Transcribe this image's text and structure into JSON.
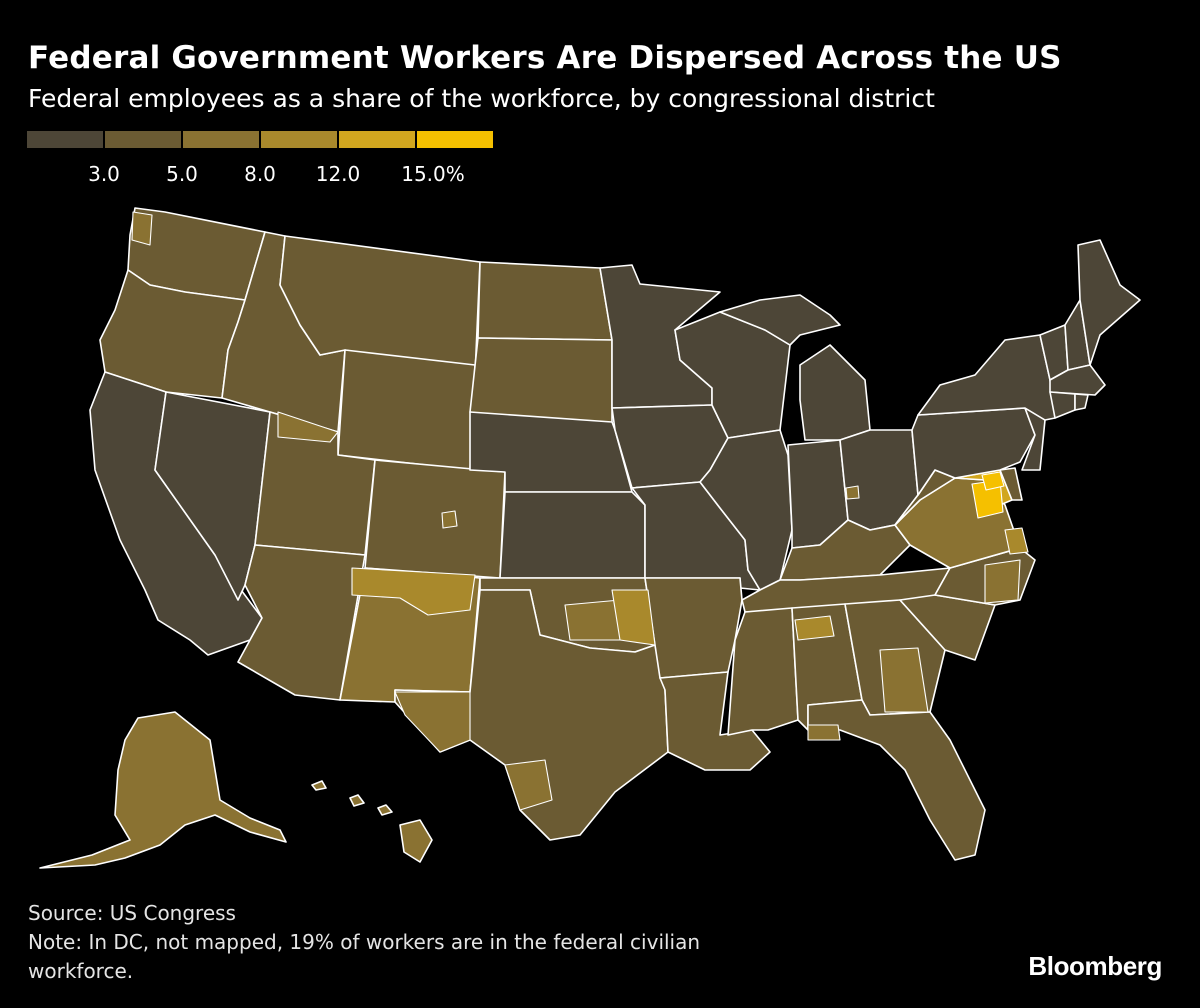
{
  "title": "Federal Government Workers Are Dispersed Across the US",
  "subtitle": "Federal employees as a share of the workforce, by congressional district",
  "legend": {
    "bins": [
      {
        "color": "#4d4637"
      },
      {
        "color": "#6b5b33"
      },
      {
        "color": "#8a7232"
      },
      {
        "color": "#a9892c"
      },
      {
        "color": "#d1a61f"
      },
      {
        "color": "#f5c000"
      }
    ],
    "ticks": [
      "3.0",
      "5.0",
      "8.0",
      "12.0",
      "15.0%"
    ]
  },
  "map": {
    "regions": [
      {
        "id": "washington",
        "bin": 1
      },
      {
        "id": "oregon",
        "bin": 1
      },
      {
        "id": "california",
        "bin": 0
      },
      {
        "id": "nevada",
        "bin": 0
      },
      {
        "id": "idaho",
        "bin": 1
      },
      {
        "id": "montana",
        "bin": 1
      },
      {
        "id": "wyoming",
        "bin": 1
      },
      {
        "id": "utah",
        "bin": 1
      },
      {
        "id": "arizona",
        "bin": 1
      },
      {
        "id": "colorado",
        "bin": 1
      },
      {
        "id": "new-mexico",
        "bin": 2
      },
      {
        "id": "north-dakota",
        "bin": 1
      },
      {
        "id": "south-dakota",
        "bin": 1
      },
      {
        "id": "nebraska",
        "bin": 0
      },
      {
        "id": "kansas",
        "bin": 0
      },
      {
        "id": "oklahoma",
        "bin": 1
      },
      {
        "id": "texas",
        "bin": 1
      },
      {
        "id": "minnesota",
        "bin": 0
      },
      {
        "id": "iowa",
        "bin": 0
      },
      {
        "id": "missouri",
        "bin": 0
      },
      {
        "id": "arkansas",
        "bin": 1
      },
      {
        "id": "louisiana",
        "bin": 1
      },
      {
        "id": "wisconsin",
        "bin": 0
      },
      {
        "id": "illinois",
        "bin": 0
      },
      {
        "id": "michigan-lower",
        "bin": 0
      },
      {
        "id": "michigan-upper",
        "bin": 0
      },
      {
        "id": "indiana",
        "bin": 0
      },
      {
        "id": "ohio",
        "bin": 0
      },
      {
        "id": "kentucky",
        "bin": 1
      },
      {
        "id": "tennessee",
        "bin": 1
      },
      {
        "id": "mississippi",
        "bin": 1
      },
      {
        "id": "alabama",
        "bin": 1
      },
      {
        "id": "georgia",
        "bin": 1
      },
      {
        "id": "florida",
        "bin": 1
      },
      {
        "id": "south-carolina",
        "bin": 1
      },
      {
        "id": "north-carolina",
        "bin": 1
      },
      {
        "id": "virginia",
        "bin": 2
      },
      {
        "id": "west-virginia",
        "bin": 1
      },
      {
        "id": "maryland",
        "bin": 4
      },
      {
        "id": "delaware",
        "bin": 1
      },
      {
        "id": "pennsylvania",
        "bin": 0
      },
      {
        "id": "new-jersey",
        "bin": 0
      },
      {
        "id": "new-york",
        "bin": 0
      },
      {
        "id": "connecticut",
        "bin": 0
      },
      {
        "id": "rhode-island",
        "bin": 0
      },
      {
        "id": "massachusetts",
        "bin": 0
      },
      {
        "id": "vermont",
        "bin": 0
      },
      {
        "id": "new-hampshire",
        "bin": 0
      },
      {
        "id": "maine",
        "bin": 0
      },
      {
        "id": "alaska",
        "bin": 2
      },
      {
        "id": "hawaii",
        "bin": 2
      }
    ],
    "highlights": [
      {
        "id": "washington-puget-sound",
        "bin": 2
      },
      {
        "id": "utah-ogden",
        "bin": 2
      },
      {
        "id": "colorado-springs",
        "bin": 2
      },
      {
        "id": "new-mexico-albuquerque",
        "bin": 3
      },
      {
        "id": "oklahoma-central",
        "bin": 2
      },
      {
        "id": "oklahoma-southwest",
        "bin": 3
      },
      {
        "id": "texas-el-paso",
        "bin": 2
      },
      {
        "id": "texas-san-antonio",
        "bin": 2
      },
      {
        "id": "alabama-huntsville",
        "bin": 3
      },
      {
        "id": "georgia-central",
        "bin": 2
      },
      {
        "id": "florida-panhandle",
        "bin": 2
      },
      {
        "id": "ohio-dayton",
        "bin": 2
      },
      {
        "id": "virginia-dc-suburbs",
        "bin": 5
      },
      {
        "id": "virginia-hampton-roads",
        "bin": 3
      },
      {
        "id": "north-carolina-east",
        "bin": 2
      },
      {
        "id": "maryland-dc-suburbs",
        "bin": 5
      }
    ]
  },
  "footer": {
    "source": "Source: US Congress",
    "note": "Note: In DC, not mapped, 19% of workers are in the federal civilian workforce."
  },
  "brand": "Bloomberg"
}
